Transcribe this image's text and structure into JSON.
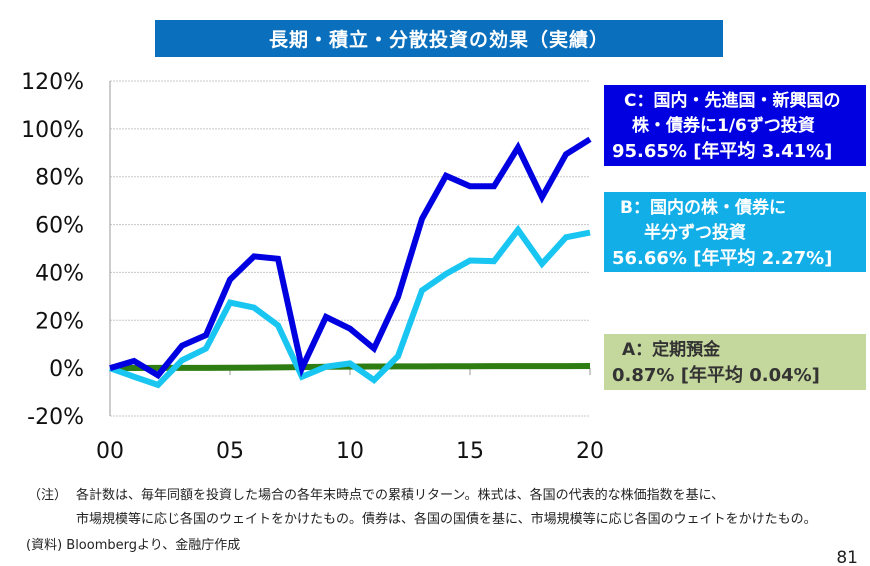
{
  "title": "長期・積立・分散投資の効果（実績）",
  "chart_data": {
    "type": "line",
    "title": "長期・積立・分散投資の効果（実績）",
    "x": [
      0,
      1,
      2,
      3,
      4,
      5,
      6,
      7,
      8,
      9,
      10,
      11,
      12,
      13,
      14,
      15,
      16,
      17,
      18,
      19,
      20
    ],
    "xticks": [
      "00",
      "05",
      "10",
      "15",
      "20"
    ],
    "xlim": [
      0,
      20
    ],
    "ylim": [
      -20,
      120
    ],
    "yticks": [
      "-20%",
      "0%",
      "20%",
      "40%",
      "60%",
      "80%",
      "100%",
      "120%"
    ],
    "grid": true,
    "series": [
      {
        "name": "C",
        "color": "#0000e0",
        "values": [
          0,
          3,
          -3,
          9.4,
          13.8,
          37,
          46.7,
          45.7,
          0,
          21.4,
          16.5,
          8.2,
          29.7,
          62.4,
          80.4,
          76,
          76,
          92.2,
          71.4,
          89.4,
          95.65
        ]
      },
      {
        "name": "B",
        "color": "#19c6f2",
        "values": [
          0,
          -3.6,
          -7,
          3.3,
          8.2,
          27.4,
          25.3,
          17.9,
          -3.6,
          0.6,
          2,
          -5,
          5,
          32.5,
          39.4,
          45,
          44.7,
          57.8,
          43.6,
          54.7,
          56.66
        ]
      },
      {
        "name": "A",
        "color": "#2e7d12",
        "values": [
          0,
          0.05,
          0.1,
          0.1,
          0.12,
          0.15,
          0.2,
          0.3,
          0.45,
          0.6,
          0.65,
          0.7,
          0.72,
          0.75,
          0.77,
          0.8,
          0.82,
          0.84,
          0.85,
          0.86,
          0.87
        ]
      }
    ]
  },
  "labels": {
    "C": {
      "line1": "C：国内・先進国・新興国の",
      "line2": "株・債券に1/6ずつ投資",
      "line3": "95.65%  [年平均 3.41%]"
    },
    "B": {
      "line1": "B：国内の株・債券に",
      "line2": "半分ずつ投資",
      "line3": "56.66% [年平均 2.27%]"
    },
    "A": {
      "line1": "A：定期預金",
      "line2": "0.87%  [年平均 0.04%]"
    }
  },
  "notes": {
    "note_label": "（注）",
    "note_line1": "各計数は、毎年同額を投資した場合の各年末時点での累積リターン。株式は、各国の代表的な株価指数を基に、",
    "note_line2": "市場規模等に応じ各国のウェイトをかけたもの。債券は、各国の国債を基に、市場規模等に応じ各国のウェイトをかけたもの。",
    "source": "(資料) Bloombergより、金融庁作成"
  },
  "page_number": "81"
}
